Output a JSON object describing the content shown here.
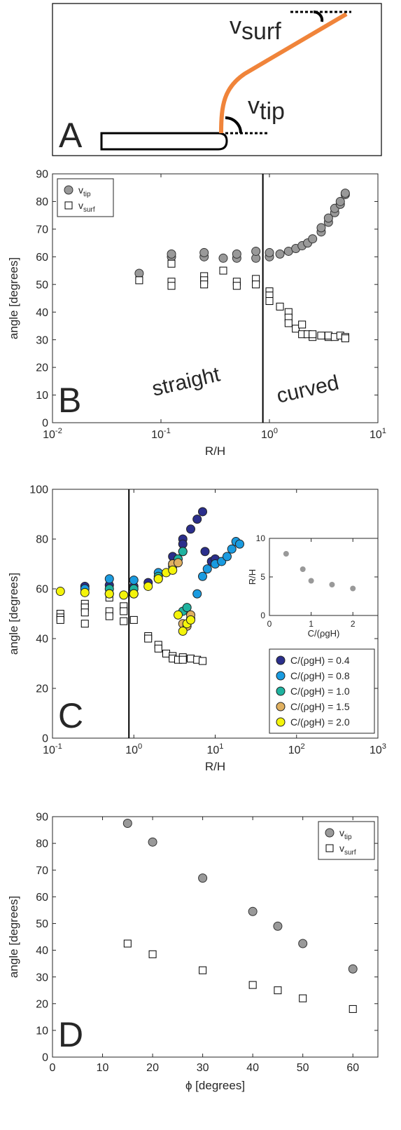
{
  "panel_a": {
    "letter": "A",
    "v_surf": {
      "main": "v",
      "sub": "surf"
    },
    "v_tip": {
      "main": "v",
      "sub": "tip"
    }
  },
  "chart_data": [
    {
      "type": "scatter",
      "letter": "B",
      "xlabel": "R/H",
      "ylabel": "angle [degrees]",
      "xscale": "log",
      "xlim": [
        0.01,
        10
      ],
      "ylim": [
        0,
        90
      ],
      "xticks": [
        {
          "value": 0.01,
          "label": "10",
          "exponent": "-2"
        },
        {
          "value": 0.1,
          "label": "10",
          "exponent": "-1"
        },
        {
          "value": 1,
          "label": "10",
          "exponent": "0"
        },
        {
          "value": 10,
          "label": "10",
          "exponent": "1"
        }
      ],
      "yticks": [
        0,
        10,
        20,
        30,
        40,
        50,
        60,
        70,
        80,
        90
      ],
      "vline": 0.87,
      "annotations": [
        "straight",
        "curved"
      ],
      "legend": "top-left",
      "series": [
        {
          "name": "v",
          "subscript": "tip",
          "marker": "o",
          "color": "#999999",
          "edgecolor": "#333333",
          "x": [
            0.063,
            0.125,
            0.125,
            0.25,
            0.25,
            0.375,
            0.5,
            0.5,
            0.75,
            0.75,
            1,
            1,
            1.25,
            1.5,
            1.75,
            2,
            2.25,
            2.5,
            3,
            3,
            3.5,
            3.5,
            4,
            4,
            4.5,
            4.5,
            5,
            5
          ],
          "values": [
            54,
            60,
            61,
            60,
            61.5,
            59.5,
            59.5,
            61,
            59.5,
            62,
            60,
            61.5,
            61,
            62,
            63,
            64,
            65,
            66.5,
            69,
            70.5,
            72.5,
            74,
            76,
            77.5,
            79,
            80,
            82.5,
            83
          ]
        },
        {
          "name": "v",
          "subscript": "surf",
          "marker": "s",
          "color": "#ffffff",
          "edgecolor": "#000000",
          "x": [
            0.063,
            0.125,
            0.125,
            0.125,
            0.25,
            0.25,
            0.25,
            0.375,
            0.5,
            0.5,
            0.75,
            0.75,
            1,
            1,
            1,
            1.25,
            1.5,
            1.5,
            1.5,
            1.75,
            2,
            2,
            2.25,
            2.5,
            2.5,
            3,
            3.5,
            3.5,
            4,
            4.5,
            5,
            5
          ],
          "values": [
            51.5,
            57.5,
            51,
            49.5,
            53,
            51.5,
            50,
            55,
            51,
            49.5,
            52,
            50,
            47.5,
            46,
            44,
            42,
            40,
            38,
            36,
            34,
            35.5,
            32,
            32,
            31,
            32,
            31.5,
            31,
            31.5,
            31,
            31.5,
            31,
            30.5
          ]
        }
      ]
    },
    {
      "type": "scatter",
      "letter": "C",
      "xlabel": "R/H",
      "ylabel": "angle [degrees]",
      "xscale": "log",
      "xlim": [
        0.1,
        1000
      ],
      "ylim": [
        0,
        100
      ],
      "xticks": [
        {
          "value": 0.1,
          "label": "10",
          "exponent": "-1"
        },
        {
          "value": 1,
          "label": "10",
          "exponent": "0"
        },
        {
          "value": 10,
          "label": "10",
          "exponent": "1"
        },
        {
          "value": 100,
          "label": "10",
          "exponent": "2"
        },
        {
          "value": 1000,
          "label": "10",
          "exponent": "3"
        }
      ],
      "yticks": [
        0,
        20,
        40,
        60,
        80,
        100
      ],
      "vline": 0.87,
      "legend": "bottom-right",
      "series": [
        {
          "marker": "s",
          "color": "#ffffff",
          "edgecolor": "#000000",
          "x": [
            0.125,
            0.125,
            0.125,
            0.25,
            0.25,
            0.25,
            0.25,
            0.5,
            0.5,
            0.5,
            0.75,
            0.75,
            0.75,
            1,
            1.5,
            1.5,
            2,
            2,
            2.5,
            3,
            3,
            3.5,
            4,
            4,
            5,
            6,
            7
          ],
          "values": [
            50,
            48.5,
            47.5,
            54,
            52.5,
            50.5,
            46,
            56.5,
            51,
            49,
            53,
            51,
            47,
            47.5,
            41,
            40,
            37.5,
            36,
            34,
            33,
            32,
            31.5,
            32.5,
            31.5,
            32,
            31.5,
            31
          ]
        },
        {
          "name": "C/(ρgH) = 0.4",
          "marker": "o",
          "color": "#2b2f8c",
          "edgecolor": "#222222",
          "x": [
            0.25,
            0.5,
            1,
            1.5,
            2,
            3,
            4,
            4,
            5,
            6,
            7,
            7.5,
            9,
            10
          ],
          "values": [
            61,
            61.5,
            61,
            62.5,
            64,
            73,
            80,
            78,
            84,
            88,
            91,
            75,
            71,
            72
          ]
        },
        {
          "name": "C/(ρgH) = 0.8",
          "marker": "o",
          "color": "#1a9be0",
          "edgecolor": "#222222",
          "x": [
            0.25,
            0.5,
            1,
            2,
            3,
            4,
            6,
            7,
            8,
            10,
            12,
            14,
            16,
            18,
            20
          ],
          "values": [
            60,
            64,
            63.5,
            66.5,
            70,
            75,
            58,
            65,
            68,
            70,
            71,
            73,
            76,
            79,
            78
          ]
        },
        {
          "name": "C/(ρgH) = 1.0",
          "marker": "o",
          "color": "#1fb3a0",
          "edgecolor": "#222222",
          "x": [
            0.5,
            1,
            2,
            3,
            3.5,
            4,
            4,
            4.5
          ],
          "values": [
            60,
            60,
            65,
            69,
            72,
            75,
            51,
            52.5
          ]
        },
        {
          "name": "C/(ρgH) = 1.5",
          "marker": "o",
          "color": "#e0b060",
          "edgecolor": "#222222",
          "x": [
            0.5,
            1,
            2,
            3,
            3.5,
            4,
            4.5,
            5,
            5
          ],
          "values": [
            58,
            58,
            64,
            70,
            70.5,
            46,
            45,
            48,
            49.5
          ]
        },
        {
          "name": "C/(ρgH) = 2.0",
          "marker": "o",
          "color": "#f4f40a",
          "edgecolor": "#222222",
          "x": [
            0.125,
            0.25,
            0.5,
            0.75,
            1,
            1.5,
            2,
            2.5,
            3,
            3.5,
            4,
            4.5,
            5
          ],
          "values": [
            59,
            58.5,
            58,
            57.5,
            58,
            61,
            64,
            66.5,
            67.5,
            49.5,
            43,
            46,
            47.5
          ]
        }
      ]
    },
    {
      "type": "scatter",
      "xlabel": "C/(ρgH)",
      "ylabel": "R/H",
      "xlim": [
        0,
        2.6
      ],
      "ylim": [
        0,
        10
      ],
      "xticks": [
        0,
        1,
        2
      ],
      "yticks": [
        0,
        5,
        10
      ],
      "series": [
        {
          "marker": "o",
          "color": "#999999",
          "edgecolor": "#999999",
          "x": [
            0.4,
            0.8,
            1,
            1.5,
            2
          ],
          "values": [
            8,
            6,
            4.5,
            4,
            3.5
          ]
        }
      ]
    },
    {
      "type": "scatter",
      "letter": "D",
      "xlabel": "ϕ [degrees]",
      "ylabel": "angle [degrees]",
      "xlim": [
        0,
        65
      ],
      "ylim": [
        0,
        90
      ],
      "xticks": [
        0,
        10,
        20,
        30,
        40,
        50,
        60
      ],
      "yticks": [
        0,
        10,
        20,
        30,
        40,
        50,
        60,
        70,
        80,
        90
      ],
      "legend": "top-right",
      "series": [
        {
          "name": "v",
          "subscript": "tip",
          "marker": "o",
          "color": "#999999",
          "edgecolor": "#333333",
          "x": [
            15,
            20,
            30,
            40,
            45,
            50,
            60
          ],
          "values": [
            87.5,
            80.5,
            67,
            54.5,
            49,
            42.5,
            33
          ]
        },
        {
          "name": "v",
          "subscript": "surf",
          "marker": "s",
          "color": "#ffffff",
          "edgecolor": "#000000",
          "x": [
            15,
            20,
            30,
            40,
            45,
            50,
            60
          ],
          "values": [
            42.5,
            38.5,
            32.5,
            27,
            25,
            22,
            18
          ]
        }
      ]
    }
  ]
}
